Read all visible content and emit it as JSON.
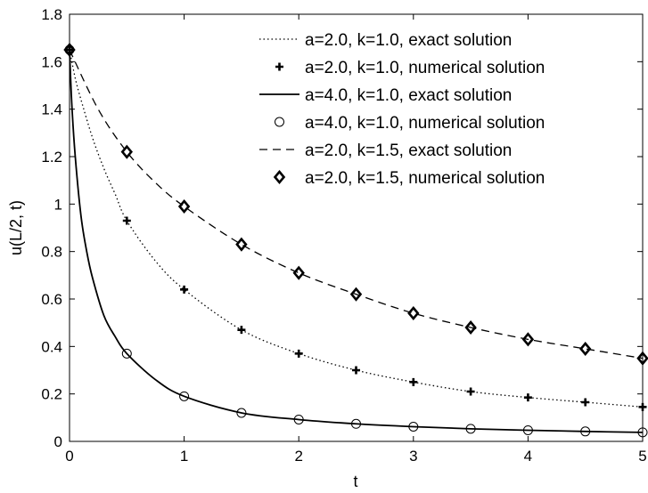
{
  "chart_data": {
    "type": "line",
    "xlabel": "t",
    "ylabel": "u(L/2, t)",
    "xlim": [
      0,
      5
    ],
    "ylim": [
      0,
      1.8
    ],
    "xticks": [
      0,
      1,
      2,
      3,
      4,
      5
    ],
    "xtick_labels": [
      "0",
      "1",
      "2",
      "3",
      "4",
      "5"
    ],
    "yticks": [
      0,
      0.2,
      0.4,
      0.6,
      0.8,
      1.0,
      1.2,
      1.4,
      1.6,
      1.8
    ],
    "ytick_labels": [
      "0",
      "0.2",
      "0.4",
      "0.6",
      "0.8",
      "1",
      "1.2",
      "1.4",
      "1.6",
      "1.8"
    ],
    "grid": false,
    "legend_position": "top-right",
    "series": [
      {
        "name": "a=2.0, k=1.0, exact solution",
        "style": "dotted",
        "kind": "curve",
        "x": [
          0,
          0.05,
          0.1,
          0.2,
          0.3,
          0.4,
          0.5,
          0.75,
          1,
          1.5,
          2,
          2.5,
          3,
          3.5,
          4,
          4.5,
          5
        ],
        "y": [
          1.65,
          1.53,
          1.44,
          1.28,
          1.15,
          1.04,
          0.93,
          0.76,
          0.64,
          0.47,
          0.37,
          0.3,
          0.25,
          0.21,
          0.185,
          0.165,
          0.145
        ]
      },
      {
        "name": "a=2.0, k=1.0, numerical solution",
        "style": "plus",
        "kind": "markers",
        "x": [
          0,
          0.5,
          1,
          1.5,
          2,
          2.5,
          3,
          3.5,
          4,
          4.5,
          5
        ],
        "y": [
          1.65,
          0.93,
          0.64,
          0.47,
          0.37,
          0.3,
          0.25,
          0.21,
          0.185,
          0.165,
          0.145
        ]
      },
      {
        "name": "a=4.0, k=1.0, exact solution",
        "style": "solid",
        "kind": "curve",
        "x": [
          0,
          0.02,
          0.05,
          0.1,
          0.15,
          0.2,
          0.3,
          0.4,
          0.5,
          0.75,
          1,
          1.5,
          2,
          2.5,
          3,
          3.5,
          4,
          4.5,
          5
        ],
        "y": [
          1.65,
          1.42,
          1.2,
          0.95,
          0.8,
          0.69,
          0.53,
          0.44,
          0.37,
          0.26,
          0.19,
          0.12,
          0.092,
          0.074,
          0.062,
          0.053,
          0.047,
          0.042,
          0.038
        ]
      },
      {
        "name": "a=4.0, k=1.0, numerical solution",
        "style": "circle",
        "kind": "markers",
        "x": [
          0,
          0.5,
          1,
          1.5,
          2,
          2.5,
          3,
          3.5,
          4,
          4.5,
          5
        ],
        "y": [
          1.65,
          0.37,
          0.19,
          0.12,
          0.092,
          0.074,
          0.062,
          0.053,
          0.047,
          0.042,
          0.038
        ]
      },
      {
        "name": "a=2.0, k=1.5, exact solution",
        "style": "dashed",
        "kind": "curve",
        "x": [
          0,
          0.25,
          0.5,
          0.75,
          1,
          1.5,
          2,
          2.5,
          3,
          3.5,
          4,
          4.5,
          5
        ],
        "y": [
          1.65,
          1.4,
          1.22,
          1.09,
          0.99,
          0.83,
          0.71,
          0.62,
          0.54,
          0.48,
          0.43,
          0.39,
          0.35
        ]
      },
      {
        "name": "a=2.0, k=1.5, numerical solution",
        "style": "diamond",
        "kind": "markers",
        "x": [
          0,
          0.5,
          1,
          1.5,
          2,
          2.5,
          3,
          3.5,
          4,
          4.5,
          5
        ],
        "y": [
          1.65,
          1.22,
          0.99,
          0.83,
          0.71,
          0.62,
          0.54,
          0.48,
          0.43,
          0.39,
          0.35
        ]
      }
    ]
  }
}
